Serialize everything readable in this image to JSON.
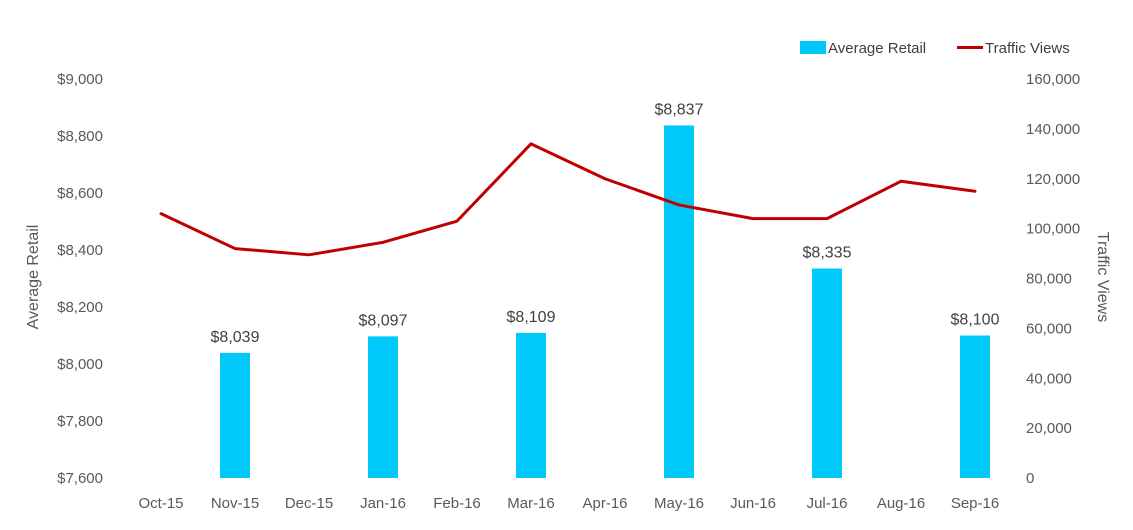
{
  "chart_data": {
    "type": "bar",
    "categories": [
      "Oct-15",
      "Nov-15",
      "Dec-15",
      "Jan-16",
      "Feb-16",
      "Mar-16",
      "Apr-16",
      "May-16",
      "Jun-16",
      "Jul-16",
      "Aug-16",
      "Sep-16"
    ],
    "series": [
      {
        "name": "Average Retail",
        "type": "bar",
        "axis": "left",
        "color": "#00c8f8",
        "values": [
          null,
          8039,
          null,
          8097,
          null,
          8109,
          null,
          8837,
          null,
          8335,
          null,
          8100
        ],
        "labels": [
          "",
          "$8,039",
          "",
          "$8,097",
          "",
          "$8,109",
          "",
          "$8,837",
          "",
          "$8,335",
          "",
          "$8,100"
        ]
      },
      {
        "name": "Traffic Views",
        "type": "line",
        "axis": "right",
        "color": "#c00000",
        "values": [
          106000,
          92000,
          89500,
          94500,
          103000,
          134000,
          120000,
          109500,
          104000,
          104000,
          119000,
          115000
        ]
      }
    ],
    "y_left": {
      "label": "Average Retail",
      "min": 7600,
      "max": 9000,
      "ticks": [
        7600,
        7800,
        8000,
        8200,
        8400,
        8600,
        8800,
        9000
      ],
      "tick_labels": [
        "$7,600",
        "$7,800",
        "$8,000",
        "$8,200",
        "$8,400",
        "$8,600",
        "$8,800",
        "$9,000"
      ]
    },
    "y_right": {
      "label": "Traffic Views",
      "min": 0,
      "max": 160000,
      "ticks": [
        0,
        20000,
        40000,
        60000,
        80000,
        100000,
        120000,
        140000,
        160000
      ],
      "tick_labels": [
        "0",
        "20,000",
        "40,000",
        "60,000",
        "80,000",
        "100,000",
        "120,000",
        "140,000",
        "160,000"
      ]
    },
    "grid": false,
    "legend": {
      "position": "top-right",
      "items": [
        "Average Retail",
        "Traffic Views"
      ]
    }
  }
}
